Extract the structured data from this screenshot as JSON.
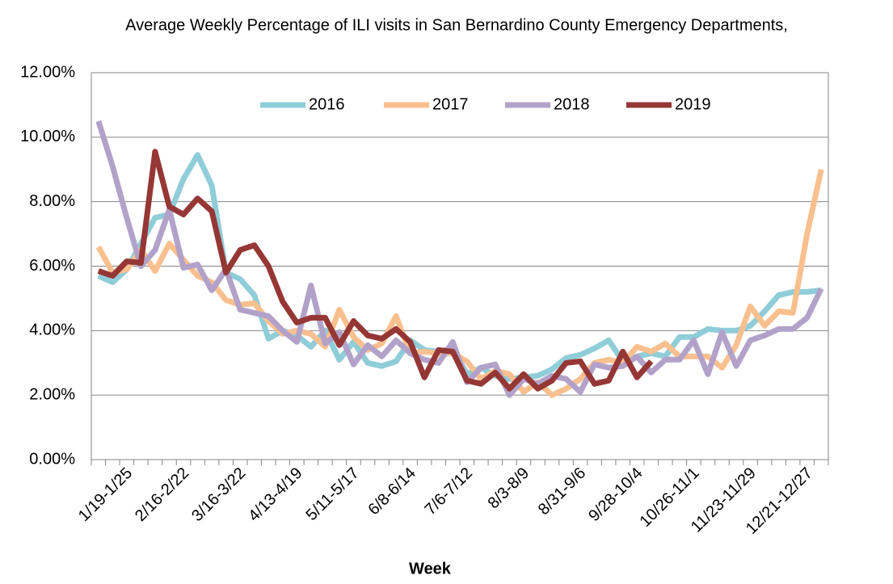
{
  "chart_data": {
    "type": "line",
    "title": "Average Weekly Percentage of ILI visits in San Bernardino County Emergency Departments,",
    "x_label": "Week",
    "categories": [
      null,
      null,
      "1/19-1/25",
      null,
      null,
      null,
      "2/16-2/22",
      null,
      null,
      null,
      "3/16-3/22",
      null,
      null,
      null,
      "4/13-4/19",
      null,
      null,
      null,
      "5/11-5/17",
      null,
      null,
      null,
      "6/8-6/14",
      null,
      null,
      null,
      "7/6-7/12",
      null,
      null,
      null,
      "8/3-8/9",
      null,
      null,
      null,
      "8/31-9/6",
      null,
      null,
      null,
      "9/28-10/4",
      null,
      null,
      null,
      "10/26-11/1",
      null,
      null,
      null,
      "11/23-11/29",
      null,
      null,
      null,
      "12/21-12/27",
      null
    ],
    "ylim": [
      0,
      12
    ],
    "yticks": [
      {
        "value": 0,
        "label": "0.00%"
      },
      {
        "value": 2,
        "label": "2.00%"
      },
      {
        "value": 4,
        "label": "4.00%"
      },
      {
        "value": 6,
        "label": "6.00%"
      },
      {
        "value": 8,
        "label": "8.00%"
      },
      {
        "value": 10,
        "label": "10.00%"
      },
      {
        "value": 12,
        "label": "12.00%"
      }
    ],
    "grid": true,
    "legend": "top",
    "series": [
      {
        "name": "2016",
        "color": "#8fcdd8",
        "values": [
          5.7,
          5.5,
          5.9,
          6.7,
          7.5,
          7.6,
          8.7,
          9.45,
          8.5,
          5.8,
          5.6,
          5.1,
          3.75,
          4.0,
          3.85,
          3.5,
          4.0,
          3.1,
          3.65,
          3.0,
          2.9,
          3.05,
          3.7,
          3.4,
          3.35,
          3.45,
          2.65,
          2.85,
          2.6,
          2.5,
          2.55,
          2.6,
          2.8,
          3.15,
          3.25,
          3.45,
          3.7,
          3.05,
          3.2,
          3.3,
          3.2,
          3.8,
          3.8,
          4.05,
          4.0,
          4.0,
          4.15,
          4.6,
          5.1,
          5.2,
          5.2,
          5.25
        ]
      },
      {
        "name": "2017",
        "color": "#f9c08f",
        "values": [
          6.6,
          5.8,
          5.9,
          6.5,
          5.85,
          6.7,
          6.2,
          5.7,
          5.5,
          4.95,
          4.8,
          4.85,
          4.3,
          3.9,
          4.0,
          3.9,
          3.5,
          4.65,
          3.8,
          3.4,
          3.6,
          4.45,
          3.3,
          3.35,
          3.3,
          3.3,
          3.05,
          2.5,
          2.75,
          2.65,
          2.1,
          2.4,
          2.0,
          2.2,
          2.5,
          3.0,
          3.1,
          3.0,
          3.5,
          3.35,
          3.6,
          3.2,
          3.2,
          3.2,
          2.85,
          3.55,
          4.75,
          4.15,
          4.6,
          4.55,
          7.0,
          9.0
        ]
      },
      {
        "name": "2018",
        "color": "#b2a2c9",
        "values": [
          10.5,
          9.1,
          7.5,
          6.0,
          6.5,
          7.75,
          5.95,
          6.05,
          5.25,
          5.9,
          4.65,
          4.55,
          4.45,
          4.0,
          3.65,
          5.4,
          3.6,
          3.95,
          2.95,
          3.55,
          3.2,
          3.7,
          3.3,
          3.1,
          3.0,
          3.65,
          2.4,
          2.85,
          2.95,
          2.0,
          2.5,
          2.35,
          2.6,
          2.5,
          2.1,
          2.95,
          2.85,
          2.9,
          3.2,
          2.7,
          3.1,
          3.1,
          3.7,
          2.65,
          3.95,
          2.9,
          3.7,
          3.85,
          4.05,
          4.05,
          4.4,
          5.3
        ]
      },
      {
        "name": "2019",
        "color": "#953735",
        "values": [
          5.85,
          5.7,
          6.15,
          6.1,
          9.55,
          7.85,
          7.6,
          8.1,
          7.7,
          5.8,
          6.5,
          6.65,
          6.0,
          4.9,
          4.25,
          4.4,
          4.4,
          3.55,
          4.3,
          3.85,
          3.75,
          4.05,
          3.65,
          2.55,
          3.4,
          3.35,
          2.45,
          2.35,
          2.7,
          2.2,
          2.65,
          2.2,
          2.45,
          3.0,
          3.05,
          2.35,
          2.45,
          3.35,
          2.55,
          3.05,
          null,
          null,
          null,
          null,
          null,
          null,
          null,
          null,
          null,
          null,
          null,
          null
        ]
      }
    ]
  }
}
